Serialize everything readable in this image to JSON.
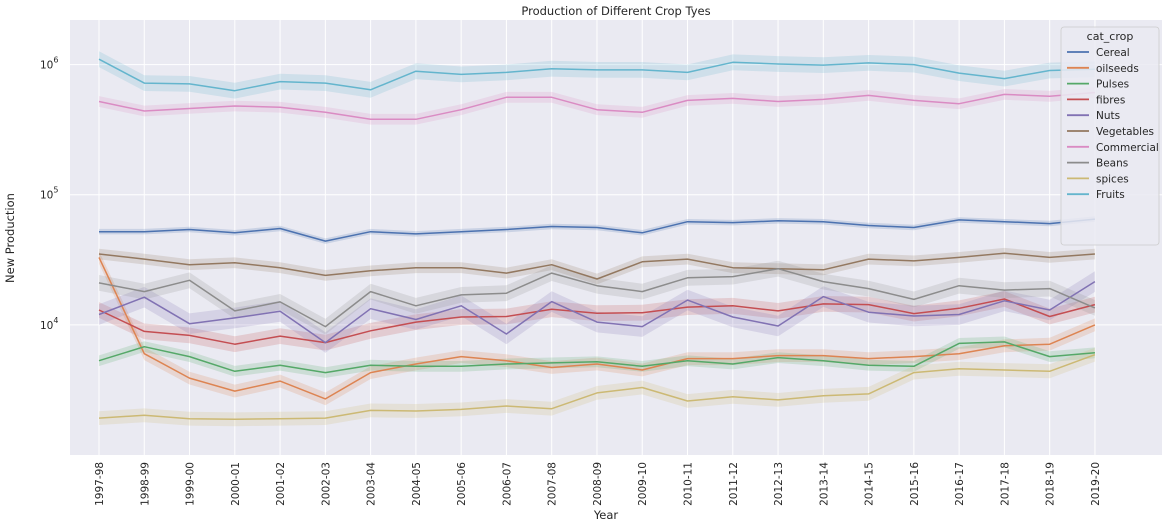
{
  "chart_data": {
    "type": "line",
    "title": "Production of Different Crop Tyes",
    "xlabel": "Year",
    "ylabel": "New Production",
    "yscale": "log",
    "ylim": [
      1000,
      2200000
    ],
    "y_ticks": [
      {
        "value": 10000,
        "base": "10",
        "exp": "4"
      },
      {
        "value": 100000,
        "base": "10",
        "exp": "5"
      },
      {
        "value": 1000000,
        "base": "10",
        "exp": "6"
      }
    ],
    "grid": true,
    "legend": {
      "title": "cat_crop",
      "placement": "top-right"
    },
    "categories": [
      "1997-98",
      "1998-99",
      "1999-00",
      "2000-01",
      "2001-02",
      "2002-03",
      "2003-04",
      "2004-05",
      "2005-06",
      "2006-07",
      "2007-08",
      "2008-09",
      "2009-10",
      "2010-11",
      "2011-12",
      "2012-13",
      "2013-14",
      "2014-15",
      "2015-16",
      "2016-17",
      "2017-18",
      "2018-19",
      "2019-20"
    ],
    "series": [
      {
        "name": "Cereal",
        "color": "#4c72b0",
        "band": 0.05,
        "values": [
          52000,
          52000,
          54000,
          51000,
          55000,
          44000,
          52000,
          50000,
          52000,
          54000,
          57000,
          56000,
          51000,
          62000,
          61000,
          63000,
          62000,
          58000,
          56000,
          64000,
          62000,
          60000,
          65000
        ]
      },
      {
        "name": "oilseeds",
        "color": "#dd8452",
        "band": 0.12,
        "values": [
          33000,
          6000,
          3900,
          3100,
          3700,
          2700,
          4300,
          5000,
          5700,
          5300,
          4700,
          5000,
          4500,
          5500,
          5500,
          5800,
          5800,
          5500,
          5700,
          6000,
          6900,
          7100,
          10000
        ]
      },
      {
        "name": "Pulses",
        "color": "#55a868",
        "band": 0.1,
        "values": [
          5300,
          6800,
          5700,
          4400,
          4900,
          4300,
          4900,
          4800,
          4800,
          5000,
          5100,
          5200,
          4800,
          5300,
          5000,
          5600,
          5300,
          4900,
          4800,
          7200,
          7400,
          5700,
          6100
        ]
      },
      {
        "name": "fibres",
        "color": "#c44e52",
        "band": 0.15,
        "values": [
          13000,
          8900,
          8300,
          7100,
          8200,
          7300,
          9000,
          10500,
          11500,
          11600,
          13200,
          12300,
          12400,
          13700,
          14000,
          12800,
          14500,
          14300,
          12200,
          13400,
          15800,
          11600,
          14300
        ]
      },
      {
        "name": "Nuts",
        "color": "#8172b3",
        "band": 0.2,
        "values": [
          12000,
          16300,
          10200,
          11300,
          12700,
          7300,
          13300,
          11000,
          14000,
          8500,
          15100,
          10500,
          9700,
          15500,
          11500,
          9800,
          16500,
          12500,
          11700,
          12000,
          15300,
          13000,
          21500
        ]
      },
      {
        "name": "Vegetables",
        "color": "#937860",
        "band": 0.1,
        "values": [
          35000,
          32000,
          29000,
          30000,
          27500,
          24000,
          26000,
          27500,
          27500,
          25000,
          29000,
          22500,
          30500,
          32000,
          27500,
          27000,
          26500,
          32000,
          31000,
          33000,
          35500,
          33000,
          35000
        ]
      },
      {
        "name": "Commercial",
        "color": "#da8bc3",
        "band": 0.1,
        "values": [
          520000,
          440000,
          460000,
          480000,
          470000,
          430000,
          380000,
          380000,
          450000,
          560000,
          560000,
          450000,
          430000,
          530000,
          550000,
          520000,
          540000,
          580000,
          530000,
          500000,
          590000,
          570000,
          610000
        ]
      },
      {
        "name": "Beans",
        "color": "#8c8c8c",
        "band": 0.15,
        "values": [
          21000,
          18000,
          22000,
          12800,
          15000,
          9700,
          18000,
          14000,
          17000,
          17500,
          25000,
          20000,
          18000,
          23000,
          23500,
          27000,
          21500,
          19000,
          15700,
          20000,
          18500,
          19000,
          13500
        ]
      },
      {
        "name": "spices",
        "color": "#ccb974",
        "band": 0.13,
        "values": [
          1920,
          2020,
          1900,
          1880,
          1900,
          1920,
          2200,
          2180,
          2240,
          2380,
          2270,
          3000,
          3300,
          2600,
          2800,
          2650,
          2850,
          2950,
          4300,
          4600,
          4500,
          4400,
          5900
        ]
      },
      {
        "name": "Fruits",
        "color": "#64b5cd",
        "band": 0.15,
        "values": [
          1100000,
          720000,
          710000,
          630000,
          740000,
          720000,
          640000,
          890000,
          840000,
          870000,
          930000,
          910000,
          910000,
          870000,
          1040000,
          1010000,
          990000,
          1030000,
          1000000,
          860000,
          780000,
          900000,
          920000
        ]
      }
    ]
  }
}
